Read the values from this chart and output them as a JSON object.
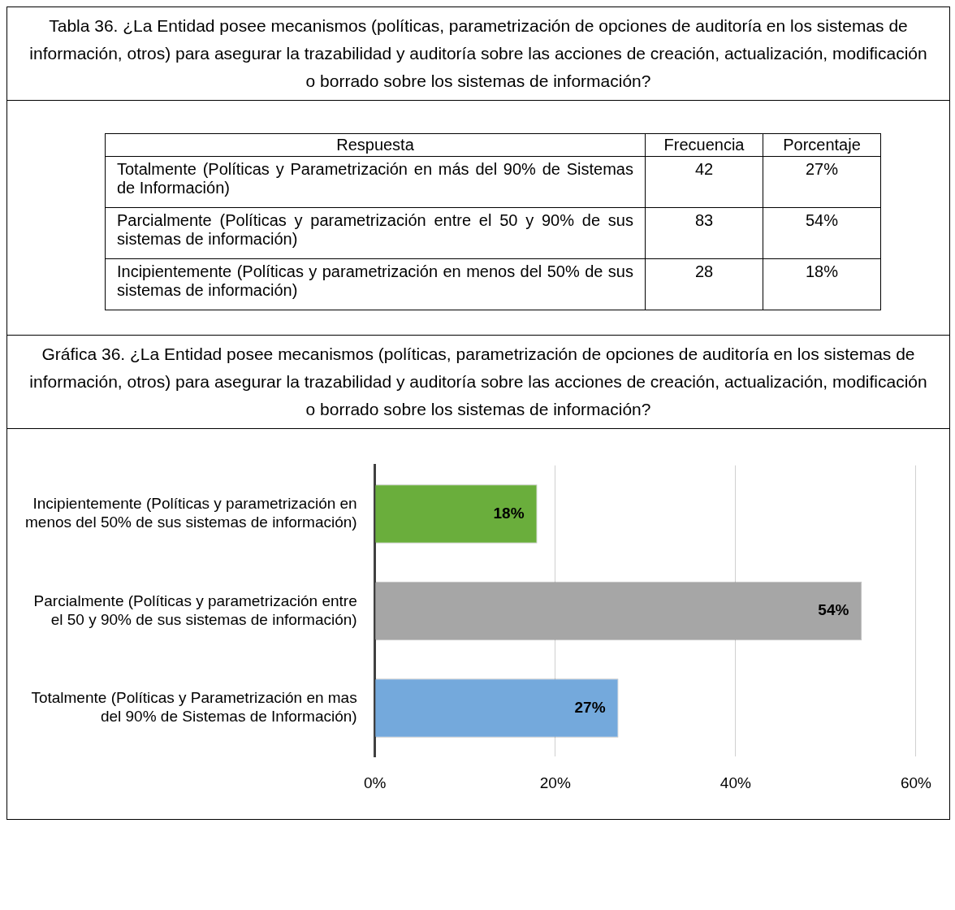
{
  "chart_data": [
    {
      "type": "other",
      "title": "Tabla 36. ¿La Entidad posee mecanismos (políticas, parametrización de opciones de auditoría en los sistemas de información, otros) para asegurar la trazabilidad y auditoría sobre las acciones de creación, actualización, modificación o borrado sobre los sistemas de información?",
      "xlabel": "Respuesta",
      "data_labels": true,
      "categories": [
        "Totalmente (Políticas y Parametrización en más del 90% de Sistemas de Información)",
        "Parcialmente (Políticas y parametrización entre el 50 y 90% de sus sistemas de información)",
        "Incipientemente (Políticas y parametrización en menos del 50% de sus sistemas de información)"
      ],
      "series": [
        {
          "name": "Frecuencia",
          "values": [
            42,
            83,
            28
          ]
        },
        {
          "name": "Porcentaje",
          "values": [
            27,
            54,
            18
          ],
          "value_labels": [
            "27%",
            "54%",
            "18%"
          ]
        }
      ]
    },
    {
      "type": "bar",
      "orientation": "horizontal",
      "title": "Gráfica 36. ¿La Entidad posee mecanismos (políticas, parametrización de opciones de auditoría en los sistemas de información, otros) para asegurar la trazabilidad y auditoría sobre las acciones de creación, actualización, modificación o borrado sobre los sistemas de información?",
      "categories": [
        "Incipientemente (Políticas y parametrización en menos del 50% de sus sistemas de información)",
        "Parcialmente (Políticas y parametrización entre el 50 y 90% de sus sistemas de información)",
        "Totalmente (Políticas y Parametrización en mas del 90% de Sistemas de Información)"
      ],
      "values": [
        18,
        54,
        27
      ],
      "colors": [
        "#6aae3c",
        "#a6a6a6",
        "#74a9dc"
      ],
      "value_labels": [
        "18%",
        "54%",
        "27%"
      ],
      "xlim": [
        0,
        60
      ],
      "xticks": [
        {
          "value": 0,
          "label": "0%"
        },
        {
          "value": 20,
          "label": "20%"
        },
        {
          "value": 40,
          "label": "40%"
        },
        {
          "value": 60,
          "label": "60%"
        }
      ],
      "grid": "x",
      "legend": false
    }
  ]
}
